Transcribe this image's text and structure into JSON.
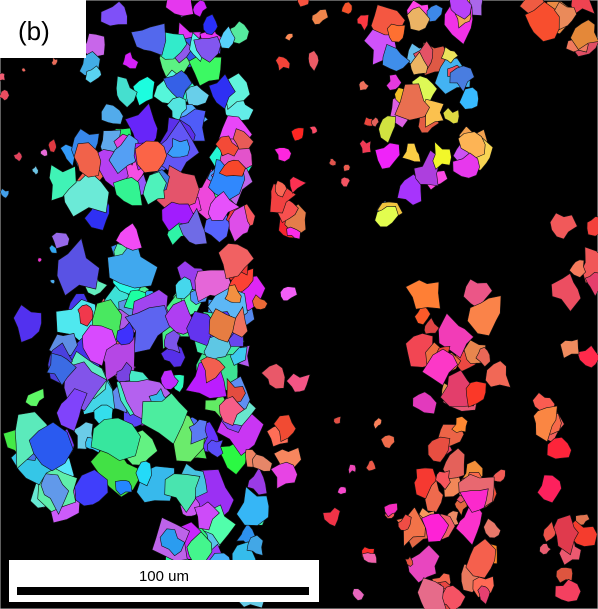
{
  "panel_label": "(b)",
  "scale_bar": {
    "label": "100 um"
  }
}
